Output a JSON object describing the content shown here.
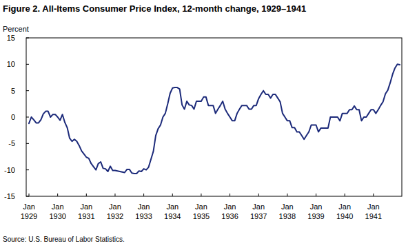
{
  "chart_data": {
    "type": "line",
    "title": "Figure 2. All-Items Consumer Price Index, 12-month change, 1929–1941",
    "y_label": "Percent",
    "source": "Source: U.S. Bureau of Labor Statistics.",
    "color": "#1c2a7a",
    "grid": false,
    "ylim": [
      -15,
      15
    ],
    "yticks": [
      -15,
      -10,
      -5,
      0,
      5,
      10,
      15
    ],
    "categories": [
      "Jan 1929",
      null,
      null,
      null,
      null,
      null,
      null,
      null,
      null,
      null,
      null,
      null,
      "Jan 1930",
      null,
      null,
      null,
      null,
      null,
      null,
      null,
      null,
      null,
      null,
      null,
      "Jan 1931",
      null,
      null,
      null,
      null,
      null,
      null,
      null,
      null,
      null,
      null,
      null,
      "Jan 1932",
      null,
      null,
      null,
      null,
      null,
      null,
      null,
      null,
      null,
      null,
      null,
      "Jan 1933",
      null,
      null,
      null,
      null,
      null,
      null,
      null,
      null,
      null,
      null,
      null,
      "Jan 1934",
      null,
      null,
      null,
      null,
      null,
      null,
      null,
      null,
      null,
      null,
      null,
      "Jan 1935",
      null,
      null,
      null,
      null,
      null,
      null,
      null,
      null,
      null,
      null,
      null,
      "Jan 1936",
      null,
      null,
      null,
      null,
      null,
      null,
      null,
      null,
      null,
      null,
      null,
      "Jan 1937",
      null,
      null,
      null,
      null,
      null,
      null,
      null,
      null,
      null,
      null,
      null,
      "Jan 1938",
      null,
      null,
      null,
      null,
      null,
      null,
      null,
      null,
      null,
      null,
      null,
      "Jan 1939",
      null,
      null,
      null,
      null,
      null,
      null,
      null,
      null,
      null,
      null,
      null,
      "Jan 1940",
      null,
      null,
      null,
      null,
      null,
      null,
      null,
      null,
      null,
      null,
      null,
      "Jan 1941",
      null,
      null,
      null,
      null,
      null,
      null,
      null,
      null,
      null,
      null,
      null
    ],
    "values": [
      -1.2,
      0,
      -0.5,
      -1.1,
      -1.1,
      -0.5,
      0.6,
      1.1,
      1.1,
      0,
      0.5,
      0.5,
      0,
      -0.6,
      0.5,
      -1.0,
      -2.0,
      -4.0,
      -4.6,
      -4.2,
      -4.6,
      -5.4,
      -6.4,
      -7.0,
      -7.6,
      -7.8,
      -8.8,
      -9.4,
      -10.0,
      -8.8,
      -8.5,
      -9.7,
      -9.8,
      -10.3,
      -9.3,
      -10.1,
      -10.1,
      -10.2,
      -10.3,
      -10.4,
      -10.5,
      -9.9,
      -9.9,
      -10.6,
      -10.7,
      -10.7,
      -10.2,
      -10.3,
      -9.8,
      -10.0,
      -9.5,
      -8.0,
      -6.5,
      -3.5,
      -2.2,
      -1.5,
      0,
      0.7,
      2.5,
      4.5,
      5.5,
      5.6,
      5.6,
      5.3,
      2.3,
      1.5,
      3.0,
      2.3,
      2.2,
      1.5,
      3.0,
      3.0,
      3.0,
      3.8,
      3.8,
      2.2,
      2.2,
      2.2,
      0.7,
      1.5,
      2.2,
      3.0,
      1.5,
      0.7,
      0,
      -0.7,
      -0.7,
      0.7,
      1.5,
      2.2,
      2.2,
      2.2,
      1.5,
      1.5,
      2.2,
      2.2,
      3.5,
      4.3,
      5.0,
      4.3,
      4.3,
      3.6,
      4.3,
      4.3,
      3.6,
      2.9,
      0.7,
      0,
      -0.7,
      -0.7,
      -2.0,
      -2.0,
      -2.8,
      -2.8,
      -3.5,
      -4.2,
      -3.5,
      -2.8,
      -1.5,
      -1.5,
      -1.5,
      -2.8,
      -2.1,
      -2.1,
      -2.1,
      -2.1,
      0,
      0,
      0,
      0,
      -0.7,
      0.7,
      0.7,
      0.7,
      1.4,
      1.4,
      2.1,
      1.4,
      1.4,
      -0.7,
      0,
      0,
      0.7,
      1.4,
      1.4,
      0.7,
      1.4,
      2.2,
      2.9,
      4.4,
      5.1,
      6.5,
      8.1,
      9.3,
      10.0,
      9.9
    ]
  }
}
